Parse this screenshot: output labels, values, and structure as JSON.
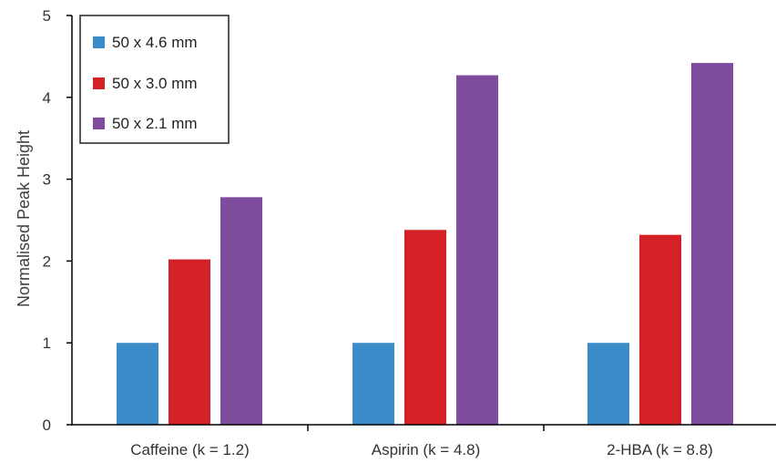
{
  "chart_data": {
    "type": "bar",
    "title": "",
    "xlabel": "",
    "ylabel": "Normalised Peak Height",
    "ylim": [
      0,
      5
    ],
    "yticks": [
      "0",
      "1",
      "2",
      "3",
      "4",
      "5"
    ],
    "grid": false,
    "legend_position": "top-left",
    "categories": [
      "Caffeine (k = 1.2)",
      "Aspirin  (k = 4.8)",
      "2-HBA (k = 8.8)"
    ],
    "series": [
      {
        "name": "50 x 4.6 mm",
        "color": "#3a8bc8",
        "values": [
          1.0,
          1.0,
          1.0
        ]
      },
      {
        "name": "50 x 3.0 mm",
        "color": "#d42027",
        "values": [
          2.02,
          2.38,
          2.32
        ]
      },
      {
        "name": "50 x 2.1 mm",
        "color": "#7f4c9e",
        "values": [
          2.78,
          4.27,
          4.42
        ]
      }
    ]
  }
}
